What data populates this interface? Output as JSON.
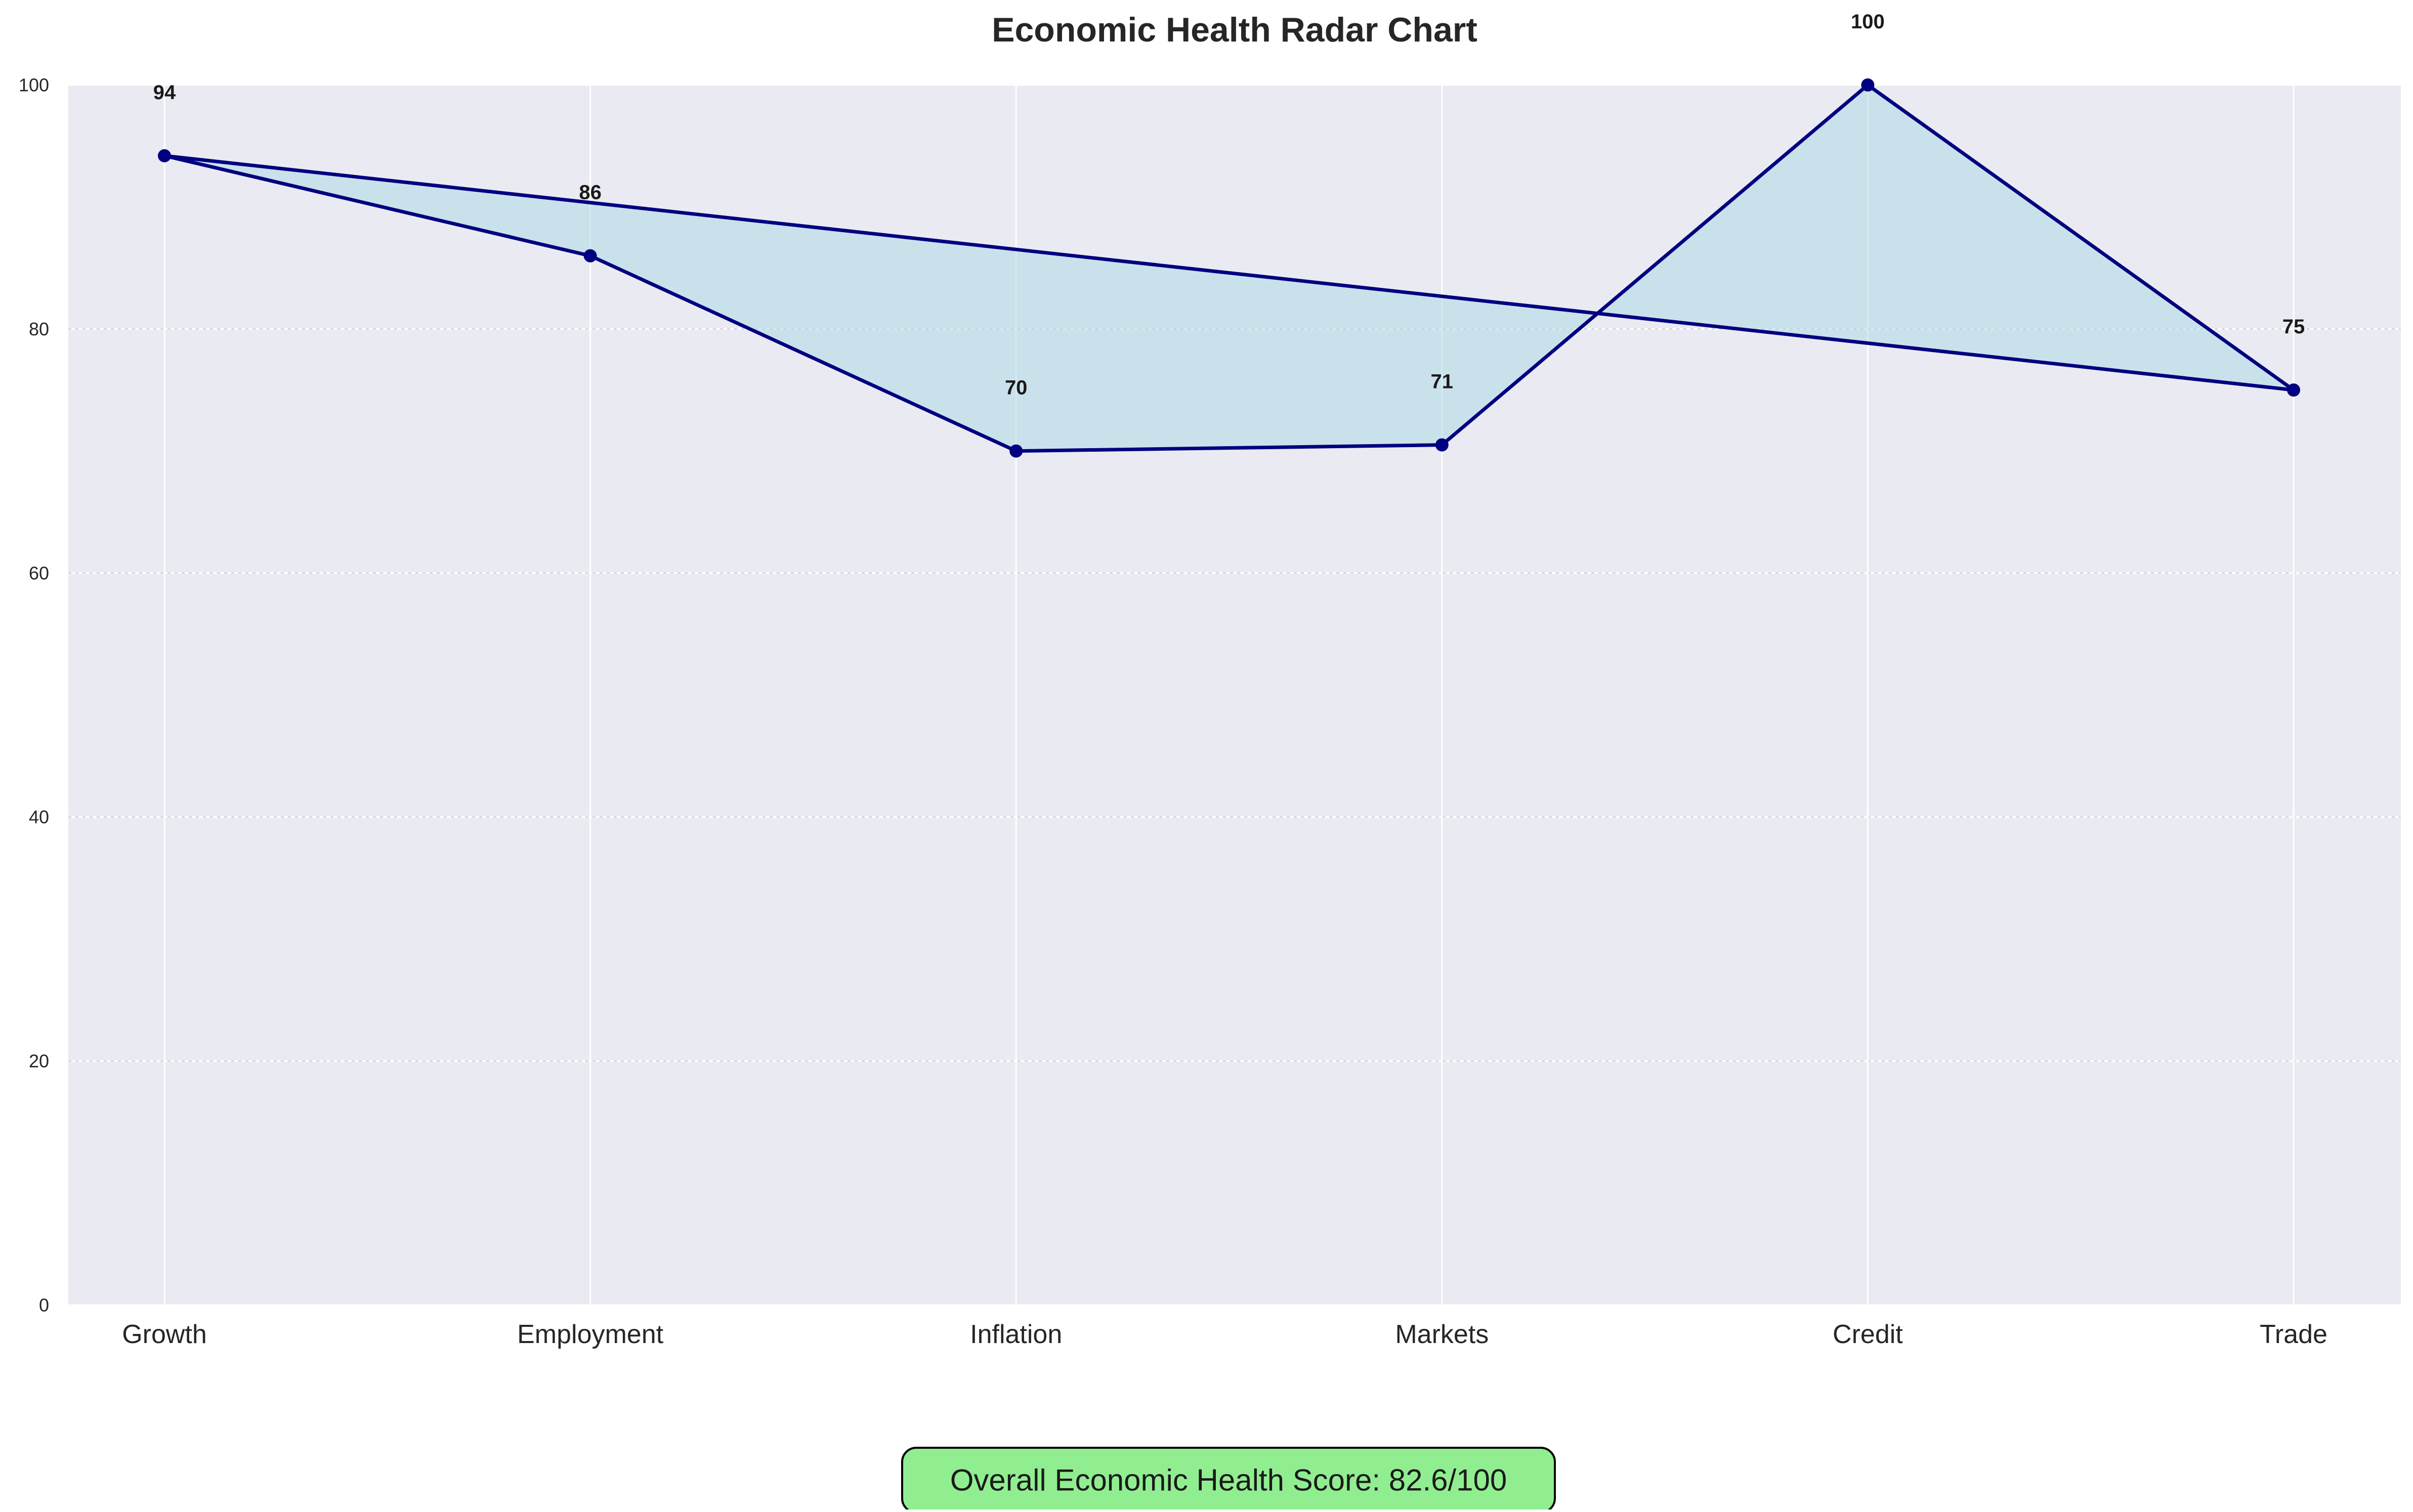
{
  "chart_data": {
    "type": "line",
    "title": "Economic Health Radar Chart",
    "categories": [
      "Growth",
      "Employment",
      "Inflation",
      "Markets",
      "Credit",
      "Trade"
    ],
    "values": [
      94.2,
      86.0,
      70.0,
      70.5,
      100.0,
      75.0
    ],
    "data_labels": [
      "94",
      "86",
      "70",
      "71",
      "100",
      "75"
    ],
    "closed_polygon": true,
    "ylim": [
      0,
      100
    ],
    "yticks": [
      0,
      20,
      40,
      60,
      80,
      100
    ],
    "ytick_labels": [
      "0",
      "20",
      "40",
      "60",
      "80",
      "100"
    ],
    "grid": true,
    "xlabel": "",
    "ylabel": ""
  },
  "summary": {
    "score_text": "Overall Economic Health Score: 82.6/100"
  },
  "colors": {
    "plot_background": "#eaeaf2",
    "grid": "#ffffff",
    "line": "#000080",
    "fill": "#add8e6",
    "score_box": "#90ee90"
  }
}
